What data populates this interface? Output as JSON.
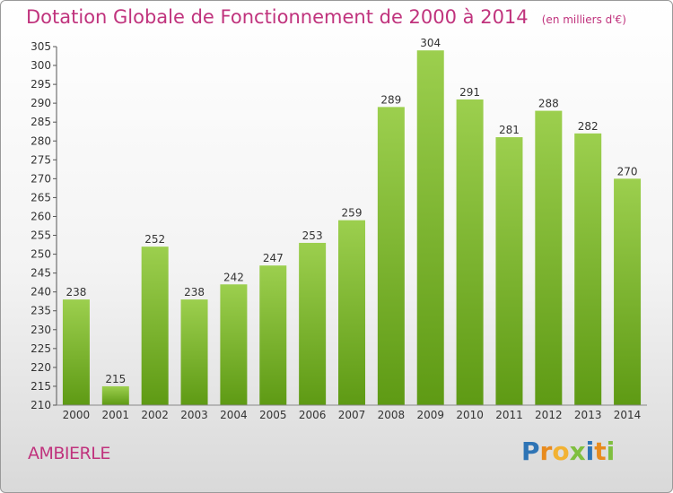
{
  "header": {
    "title": "Dotation Globale de Fonctionnement de 2000 à 2014",
    "subtitle": "(en milliers d'€)"
  },
  "commune": "AMBIERLE",
  "logo": {
    "text": "Proxiti",
    "letters": [
      {
        "ch": "P",
        "color": "#2e74b5"
      },
      {
        "ch": "r",
        "color": "#e88b1e"
      },
      {
        "ch": "o",
        "color": "#f2b233"
      },
      {
        "ch": "x",
        "color": "#7fbf3f"
      },
      {
        "ch": "i",
        "color": "#2e74b5"
      },
      {
        "ch": "t",
        "color": "#e88b1e"
      },
      {
        "ch": "i",
        "color": "#7fbf3f"
      }
    ]
  },
  "colors": {
    "bar_top": "#9ccf4e",
    "bar_bottom": "#5e9a14",
    "title": "#c0337d"
  },
  "chart_data": {
    "type": "bar",
    "title": "Dotation Globale de Fonctionnement de 2000 à 2014",
    "subtitle": "(en milliers d'€)",
    "categories": [
      "2000",
      "2001",
      "2002",
      "2003",
      "2004",
      "2005",
      "2006",
      "2007",
      "2008",
      "2009",
      "2010",
      "2011",
      "2012",
      "2013",
      "2014"
    ],
    "values": [
      238,
      215,
      252,
      238,
      242,
      247,
      253,
      259,
      289,
      304,
      291,
      281,
      288,
      282,
      270
    ],
    "ylim": [
      210,
      305
    ],
    "yticks": [
      210,
      215,
      220,
      225,
      230,
      235,
      240,
      245,
      250,
      255,
      260,
      265,
      270,
      275,
      280,
      285,
      290,
      295,
      300,
      305
    ],
    "grid": false,
    "data_labels": true
  }
}
